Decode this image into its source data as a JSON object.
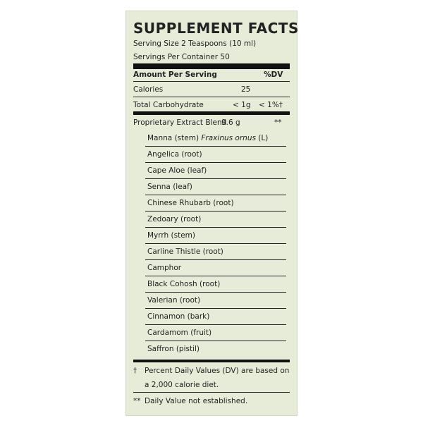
{
  "header": {
    "title": "SUPPLEMENT FACTS",
    "serving_size": "Serving Size 2 Teaspoons (10 ml)",
    "servings_per_container": "Servings Per Container 50"
  },
  "table": {
    "columns": [
      "Amount Per Serving",
      "%DV"
    ],
    "rows": [
      [
        "Calories",
        "25",
        ""
      ],
      [
        "Total Carbohydrate",
        "< 1g",
        "< 1%†"
      ],
      [
        "Proprietary Extract Blend",
        "9.6 g",
        "**"
      ]
    ]
  },
  "ingredients": [
    {
      "name": "Manna (stem)",
      "latin": "Fraxinus ornus",
      "suffix": "(L)"
    },
    "Angelica (root)",
    "Cape Aloe (leaf)",
    "Senna (leaf)",
    "Chinese Rhubarb (root)",
    "Zedoary (root)",
    "Myrrh (stem)",
    "Carline Thistle (root)",
    "Camphor",
    "Black Cohosh (root)",
    "Valerian (root)",
    "Cinnamon (bark)",
    "Cardamom (fruit)",
    "Saffron (pistil)"
  ],
  "footnotes": [
    {
      "symbol": "†",
      "lines": [
        "Percent Daily Values (DV) are based on",
        "a 2,000 calorie diet."
      ]
    },
    {
      "symbol": "**",
      "lines": [
        "Daily Value not established."
      ]
    }
  ]
}
